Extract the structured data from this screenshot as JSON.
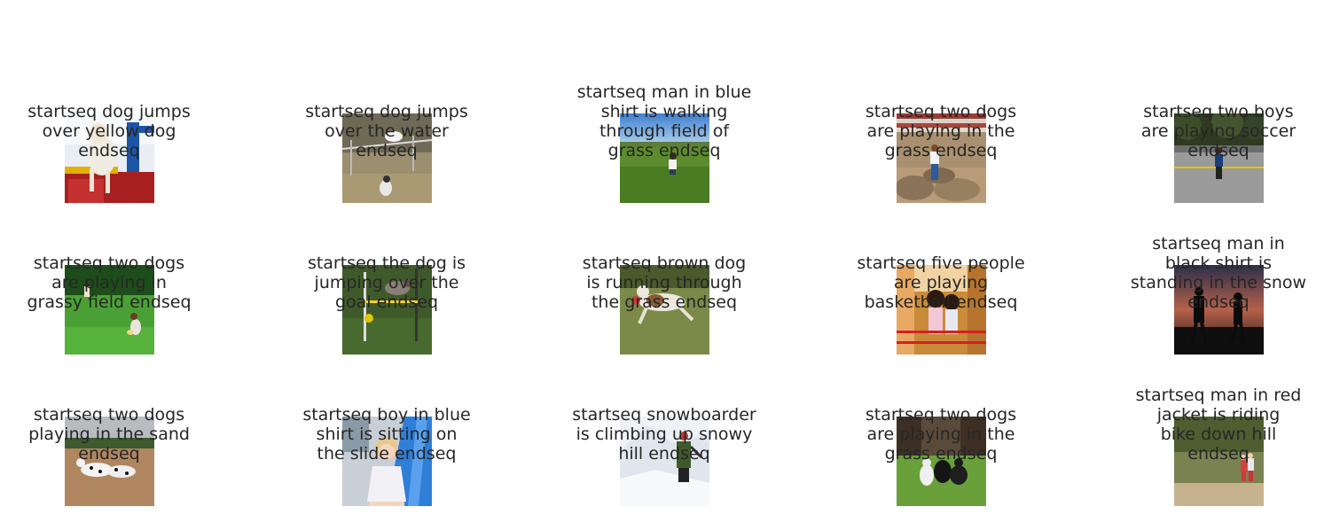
{
  "captions": [
    "startseq dog jumps\nover yellow dog\nendseq",
    "startseq dog jumps\nover the water\nendseq",
    "startseq man in blue\nshirt is walking\nthrough field of\ngrass endseq",
    "startseq two dogs\nare playing in the\ngrass endseq",
    "startseq two boys\nare playing soccer\nendseq",
    "startseq two dogs\nare playing in\ngrassy field endseq",
    "startseq the dog is\njumping over the\ngoal endseq",
    "startseq brown dog\nis running through\nthe grass endseq",
    "startseq five people\nare playing\nbasketball endseq",
    "startseq man in\nblack shirt is\nstanding in the snow\nendseq",
    "startseq two dogs\nplaying in the sand\nendseq",
    "startseq boy in blue\nshirt is sitting on\nthe slide endseq",
    "startseq snowboarder\nis climbing up snowy\nhill endseq",
    "startseq two dogs\nare playing in the\ngrass endseq",
    "startseq man in red\njacket is riding\nbike down hill\nendseq"
  ],
  "images": [
    "dog-on-playground-photo",
    "dog-jumping-field-photo",
    "child-in-grass-field-photo",
    "child-on-rocks-photo",
    "boy-on-road-photo",
    "dog-and-child-on-lawn-photo",
    "dog-agility-jump-photo",
    "greyhound-running-photo",
    "girls-at-market-photo",
    "silhouettes-at-sunset-photo",
    "dalmatians-on-dirt-photo",
    "girl-on-blue-slide-photo",
    "snowboarder-on-snow-photo",
    "dogs-on-grass-photo",
    "children-by-water-photo"
  ]
}
